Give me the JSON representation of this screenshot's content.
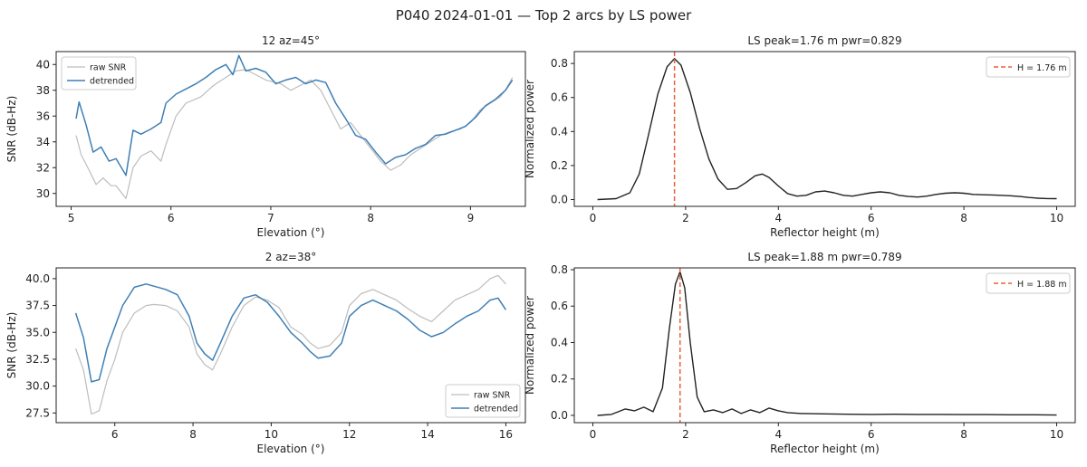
{
  "suptitle": "P040  2024-01-01  —  Top 2 arcs by LS power",
  "colors": {
    "raw": "#bdbdbd",
    "detrended": "#3f7fb5",
    "periodogram": "#222222",
    "peak_line": "#e8603c"
  },
  "chart_data": [
    {
      "type": "line",
      "title": "12  az=45°",
      "xlabel": "Elevation (°)",
      "ylabel": "SNR (dB-Hz)",
      "xlim": [
        4.85,
        9.55
      ],
      "ylim": [
        29.0,
        41.0
      ],
      "xticks": [
        5,
        6,
        7,
        8,
        9
      ],
      "yticks": [
        30,
        32,
        34,
        36,
        38,
        40
      ],
      "legend": "upper-left",
      "series": [
        {
          "name": "raw SNR",
          "x": [
            5.05,
            5.1,
            5.18,
            5.25,
            5.32,
            5.4,
            5.45,
            5.55,
            5.62,
            5.7,
            5.8,
            5.9,
            5.95,
            6.05,
            6.15,
            6.3,
            6.4,
            6.45,
            6.55,
            6.65,
            6.75,
            6.85,
            6.95,
            7.1,
            7.2,
            7.3,
            7.4,
            7.5,
            7.6,
            7.7,
            7.8,
            7.9,
            8.0,
            8.1,
            8.2,
            8.3,
            8.4,
            8.5,
            8.6,
            8.7,
            8.8,
            8.9,
            9.0,
            9.1,
            9.2,
            9.3,
            9.35,
            9.42
          ],
          "values": [
            34.5,
            33.0,
            31.8,
            30.7,
            31.2,
            30.6,
            30.6,
            29.6,
            32.0,
            32.9,
            33.3,
            32.5,
            33.8,
            36.0,
            37.0,
            37.5,
            38.2,
            38.5,
            39.0,
            39.5,
            39.6,
            39.2,
            38.8,
            38.5,
            38.0,
            38.4,
            38.8,
            38.0,
            36.5,
            35.0,
            35.5,
            34.5,
            33.5,
            32.5,
            31.8,
            32.2,
            33.0,
            33.5,
            34.0,
            34.5,
            34.8,
            35.0,
            35.5,
            36.5,
            37.0,
            37.5,
            38.0,
            39.0
          ]
        },
        {
          "name": "detrended",
          "x": [
            5.05,
            5.08,
            5.15,
            5.22,
            5.3,
            5.38,
            5.45,
            5.55,
            5.62,
            5.7,
            5.8,
            5.9,
            5.95,
            6.05,
            6.15,
            6.25,
            6.35,
            6.45,
            6.55,
            6.62,
            6.68,
            6.75,
            6.85,
            6.95,
            7.05,
            7.15,
            7.25,
            7.35,
            7.45,
            7.55,
            7.65,
            7.75,
            7.85,
            7.95,
            8.05,
            8.15,
            8.25,
            8.35,
            8.45,
            8.55,
            8.65,
            8.75,
            8.85,
            8.95,
            9.05,
            9.15,
            9.25,
            9.35,
            9.42
          ],
          "values": [
            35.8,
            37.1,
            35.3,
            33.2,
            33.6,
            32.5,
            32.7,
            31.4,
            34.9,
            34.6,
            35.0,
            35.5,
            37.0,
            37.7,
            38.1,
            38.5,
            39.0,
            39.6,
            40.0,
            39.2,
            40.7,
            39.5,
            39.7,
            39.4,
            38.5,
            38.8,
            39.0,
            38.5,
            38.8,
            38.6,
            37.0,
            35.8,
            34.5,
            34.2,
            33.2,
            32.3,
            32.8,
            33.0,
            33.5,
            33.8,
            34.5,
            34.6,
            34.9,
            35.2,
            35.9,
            36.8,
            37.3,
            38.0,
            38.8
          ]
        }
      ]
    },
    {
      "type": "line",
      "title": "LS  peak=1.76 m  pwr=0.829",
      "xlabel": "Reflector height (m)",
      "ylabel": "Normalized power",
      "xlim": [
        -0.4,
        10.4
      ],
      "ylim": [
        -0.04,
        0.87
      ],
      "xticks": [
        0,
        2,
        4,
        6,
        8,
        10
      ],
      "yticks": [
        0.0,
        0.2,
        0.4,
        0.6,
        0.8
      ],
      "legend": "upper-right",
      "peak": 1.76,
      "series": [
        {
          "name": "",
          "x": [
            0.1,
            0.5,
            0.8,
            1.0,
            1.2,
            1.4,
            1.6,
            1.76,
            1.9,
            2.1,
            2.3,
            2.5,
            2.7,
            2.9,
            3.1,
            3.3,
            3.5,
            3.65,
            3.8,
            4.0,
            4.2,
            4.4,
            4.6,
            4.8,
            5.0,
            5.2,
            5.4,
            5.6,
            5.8,
            6.0,
            6.2,
            6.4,
            6.6,
            6.8,
            7.0,
            7.2,
            7.4,
            7.6,
            7.8,
            8.0,
            8.2,
            8.4,
            8.6,
            8.8,
            9.0,
            9.2,
            9.4,
            9.6,
            9.8,
            10.0
          ],
          "values": [
            0.0,
            0.005,
            0.04,
            0.15,
            0.38,
            0.62,
            0.78,
            0.829,
            0.79,
            0.63,
            0.42,
            0.24,
            0.12,
            0.06,
            0.065,
            0.1,
            0.14,
            0.15,
            0.13,
            0.08,
            0.035,
            0.02,
            0.025,
            0.045,
            0.05,
            0.04,
            0.025,
            0.02,
            0.03,
            0.04,
            0.045,
            0.04,
            0.025,
            0.018,
            0.015,
            0.02,
            0.03,
            0.037,
            0.04,
            0.037,
            0.03,
            0.028,
            0.027,
            0.025,
            0.022,
            0.018,
            0.012,
            0.008,
            0.006,
            0.005
          ]
        }
      ],
      "legend_entries": [
        "H = 1.76 m"
      ]
    },
    {
      "type": "line",
      "title": "2  az=38°",
      "xlabel": "Elevation (°)",
      "ylabel": "SNR (dB-Hz)",
      "xlim": [
        4.5,
        16.5
      ],
      "ylim": [
        26.6,
        41.0
      ],
      "xticks": [
        6,
        8,
        10,
        12,
        14,
        16
      ],
      "yticks": [
        27.5,
        30.0,
        32.5,
        35.0,
        37.5,
        40.0
      ],
      "legend": "lower-right",
      "series": [
        {
          "name": "raw SNR",
          "x": [
            5.0,
            5.2,
            5.4,
            5.6,
            5.8,
            6.0,
            6.2,
            6.5,
            6.8,
            7.0,
            7.3,
            7.6,
            7.9,
            8.1,
            8.3,
            8.5,
            8.7,
            9.0,
            9.3,
            9.6,
            9.9,
            10.2,
            10.5,
            10.8,
            11.0,
            11.2,
            11.5,
            11.8,
            12.0,
            12.3,
            12.6,
            12.9,
            13.2,
            13.5,
            13.8,
            14.1,
            14.4,
            14.7,
            15.0,
            15.3,
            15.6,
            15.8,
            16.0
          ],
          "values": [
            33.5,
            31.5,
            27.4,
            27.7,
            30.5,
            32.5,
            35.0,
            36.8,
            37.5,
            37.6,
            37.5,
            37.0,
            35.5,
            33.0,
            32.0,
            31.5,
            33.0,
            35.5,
            37.5,
            38.3,
            38.0,
            37.3,
            35.5,
            34.8,
            34.0,
            33.5,
            33.8,
            35.0,
            37.5,
            38.6,
            39.0,
            38.5,
            38.0,
            37.2,
            36.5,
            36.0,
            37.0,
            38.0,
            38.5,
            39.0,
            40.0,
            40.3,
            39.5
          ]
        },
        {
          "name": "detrended",
          "x": [
            5.0,
            5.2,
            5.4,
            5.6,
            5.8,
            6.0,
            6.2,
            6.5,
            6.8,
            7.0,
            7.3,
            7.6,
            7.9,
            8.1,
            8.3,
            8.5,
            8.7,
            9.0,
            9.3,
            9.6,
            9.9,
            10.2,
            10.5,
            10.8,
            11.0,
            11.2,
            11.5,
            11.8,
            12.0,
            12.3,
            12.6,
            12.9,
            13.2,
            13.5,
            13.8,
            14.1,
            14.4,
            14.7,
            15.0,
            15.3,
            15.6,
            15.8,
            16.0
          ],
          "values": [
            36.8,
            34.5,
            30.4,
            30.6,
            33.5,
            35.5,
            37.5,
            39.2,
            39.5,
            39.3,
            39.0,
            38.5,
            36.5,
            34.0,
            33.0,
            32.4,
            34.0,
            36.5,
            38.2,
            38.5,
            37.8,
            36.5,
            35.0,
            34.0,
            33.2,
            32.6,
            32.8,
            34.0,
            36.5,
            37.5,
            38.0,
            37.5,
            37.0,
            36.2,
            35.2,
            34.6,
            35.0,
            35.8,
            36.5,
            37.0,
            38.0,
            38.2,
            37.1
          ]
        }
      ]
    },
    {
      "type": "line",
      "title": "LS  peak=1.88 m  pwr=0.789",
      "xlabel": "Reflector height (m)",
      "ylabel": "Normalized power",
      "xlim": [
        -0.4,
        10.4
      ],
      "ylim": [
        -0.04,
        0.81
      ],
      "xticks": [
        0,
        2,
        4,
        6,
        8,
        10
      ],
      "yticks": [
        0.0,
        0.2,
        0.4,
        0.6,
        0.8
      ],
      "legend": "upper-right",
      "peak": 1.88,
      "series": [
        {
          "name": "",
          "x": [
            0.1,
            0.4,
            0.7,
            0.9,
            1.1,
            1.3,
            1.5,
            1.65,
            1.78,
            1.88,
            1.98,
            2.1,
            2.25,
            2.4,
            2.6,
            2.8,
            3.0,
            3.2,
            3.4,
            3.6,
            3.8,
            4.0,
            4.2,
            4.5,
            5.0,
            5.5,
            6.0,
            6.5,
            7.0,
            7.5,
            8.0,
            8.5,
            9.0,
            9.5,
            10.0
          ],
          "values": [
            0.0,
            0.005,
            0.035,
            0.025,
            0.045,
            0.02,
            0.15,
            0.48,
            0.72,
            0.789,
            0.7,
            0.4,
            0.1,
            0.02,
            0.03,
            0.015,
            0.035,
            0.01,
            0.03,
            0.015,
            0.04,
            0.025,
            0.015,
            0.01,
            0.008,
            0.006,
            0.005,
            0.006,
            0.005,
            0.005,
            0.004,
            0.004,
            0.003,
            0.003,
            0.002
          ]
        }
      ],
      "legend_entries": [
        "H = 1.88 m"
      ]
    }
  ]
}
